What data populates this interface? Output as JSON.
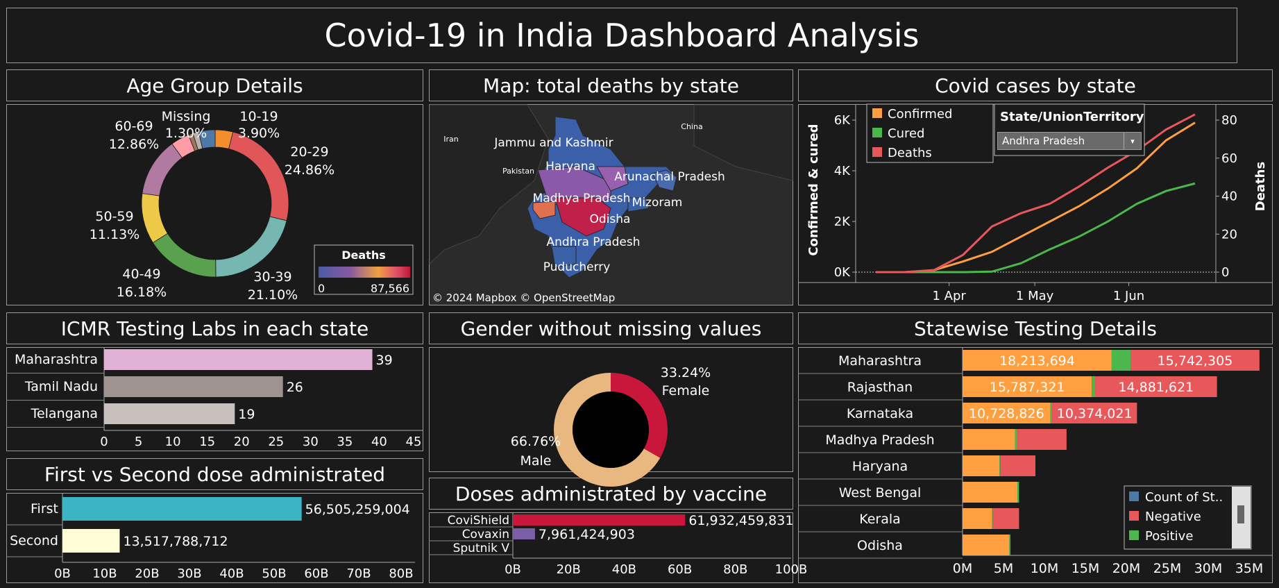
{
  "title": "Covid-19 in India Dashboard Analysis",
  "panels": {
    "age": "Age Group Details",
    "map": "Map: total deaths by state",
    "cases": "Covid cases by state",
    "labs": "ICMR Testing Labs in each state",
    "gender": "Gender without missing values",
    "testing": "Statewise Testing Details",
    "dose": "First vs Second dose administrated",
    "vaccine": "Doses administrated by vaccine"
  },
  "colors": {
    "bg": "#1a1a1a",
    "confirmed": "#ff9f40",
    "cured": "#4cb74c",
    "deaths": "#e8575a",
    "first": "#3cb4c4",
    "second": "#fffdd8",
    "covishield": "#c8173a",
    "covaxin": "#7a5fa8",
    "female": "#c8173a",
    "male": "#e8b880"
  },
  "age_chart": {
    "type": "pie",
    "slices": [
      {
        "label": "10-19",
        "pct": "3.90%",
        "value": 3.9,
        "color": "#f28e2b"
      },
      {
        "label": "20-29",
        "pct": "24.86%",
        "value": 24.86,
        "color": "#e15759"
      },
      {
        "label": "30-39",
        "pct": "21.10%",
        "value": 21.1,
        "color": "#76b7b2"
      },
      {
        "label": "40-49",
        "pct": "16.18%",
        "value": 16.18,
        "color": "#59a14f"
      },
      {
        "label": "50-59",
        "pct": "11.13%",
        "value": 11.13,
        "color": "#edc948"
      },
      {
        "label": "60-69",
        "pct": "12.86%",
        "value": 12.86,
        "color": "#b07aa1"
      },
      {
        "label": "",
        "pct": "",
        "value": 4.07,
        "color": "#ff9da7"
      },
      {
        "label": "",
        "pct": "",
        "value": 1.0,
        "color": "#9c755f"
      },
      {
        "label": "Missing",
        "pct": "1.30%",
        "value": 1.3,
        "color": "#bab0ac"
      },
      {
        "label": "",
        "pct": "",
        "value": 3.6,
        "color": "#4e79a7"
      }
    ]
  },
  "map_legend": {
    "title": "Deaths",
    "min": "0",
    "max": "87,566"
  },
  "map_labels": [
    "Jammu and Kashmir",
    "Haryana",
    "Arunachal Pradesh",
    "Madhya Pradesh",
    "Mizoram",
    "Odisha",
    "Andhra Pradesh",
    "Puducherry",
    "Iran",
    "Pakistan",
    "China"
  ],
  "map_credit": "© 2024 Mapbox © OpenStreetMap",
  "cases_legend": {
    "items": [
      "Confirmed",
      "Cured",
      "Deaths"
    ]
  },
  "state_filter": {
    "label": "State/UnionTerritory",
    "selected": "Andhra Pradesh"
  },
  "chart_data": [
    {
      "type": "line",
      "title": "Covid cases by state",
      "ylabel": "Confirmed & cured",
      "y2label": "Deaths",
      "x_ticks": [
        "1 Apr",
        "1 May",
        "1 Jun"
      ],
      "y_ticks": [
        "0K",
        "2K",
        "4K",
        "6K"
      ],
      "y2_ticks": [
        "0",
        "20",
        "40",
        "60",
        "80"
      ],
      "ylim": [
        0,
        6000
      ],
      "y2lim": [
        0,
        80
      ],
      "x": [
        "Mar 12",
        "Mar 22",
        "Apr 1",
        "Apr 11",
        "Apr 21",
        "May 1",
        "May 11",
        "May 21",
        "Jun 1",
        "Jun 11",
        "Jun 21",
        "Jun 25"
      ],
      "series": [
        {
          "name": "Confirmed",
          "axis": "left",
          "values": [
            0,
            0,
            80,
            420,
            800,
            1400,
            2000,
            2600,
            3300,
            4100,
            5200,
            5900
          ]
        },
        {
          "name": "Cured",
          "axis": "left",
          "values": [
            0,
            0,
            0,
            0,
            20,
            350,
            900,
            1400,
            2000,
            2700,
            3200,
            3500
          ]
        },
        {
          "name": "Deaths",
          "axis": "right",
          "values": [
            0,
            0,
            1,
            9,
            24,
            31,
            36,
            45,
            55,
            64,
            75,
            83
          ]
        }
      ]
    },
    {
      "type": "bar",
      "title": "ICMR Testing Labs in each state",
      "categories": [
        "Maharashtra",
        "Tamil Nadu",
        "Telangana"
      ],
      "values": [
        39,
        26,
        19
      ],
      "value_labels": [
        "39",
        "26",
        "19"
      ],
      "colors": [
        "#e0b3d6",
        "#9e9391",
        "#c8c0bd"
      ],
      "x_ticks": [
        "0",
        "5",
        "10",
        "15",
        "20",
        "25",
        "30",
        "35",
        "40",
        "45"
      ],
      "xlim": [
        0,
        45
      ]
    },
    {
      "type": "pie",
      "title": "Gender without missing values",
      "slices": [
        {
          "label": "Female",
          "pct": "33.24%",
          "value": 33.24
        },
        {
          "label": "Male",
          "pct": "66.76%",
          "value": 66.76
        }
      ]
    },
    {
      "type": "bar",
      "title": "Statewise Testing Details",
      "categories": [
        "Maharashtra",
        "Rajasthan",
        "Karnataka",
        "Madhya Pradesh",
        "Haryana",
        "West Bengal",
        "Kerala",
        "Odisha"
      ],
      "legend": [
        "Count of St..",
        "Negative",
        "Positive"
      ],
      "legend_colors": [
        "#4e79a7",
        "#e8575a",
        "#4cb74c"
      ],
      "x_ticks": [
        "0M",
        "5M",
        "10M",
        "15M",
        "20M",
        "25M",
        "30M",
        "35M"
      ],
      "xlim": [
        0,
        35000000
      ],
      "segments": [
        [
          {
            "v": 18213694,
            "c": "#ff9f40",
            "label": "18,213,694"
          },
          {
            "v": 2300000,
            "c": "#4cb74c",
            "label": ""
          },
          {
            "v": 15742305,
            "c": "#e8575a",
            "label": "15,742,305"
          }
        ],
        [
          {
            "v": 15787321,
            "c": "#ff9f40",
            "label": "15,787,321"
          },
          {
            "v": 400000,
            "c": "#4cb74c",
            "label": ""
          },
          {
            "v": 14881621,
            "c": "#e8575a",
            "label": "14,881,621"
          }
        ],
        [
          {
            "v": 10728826,
            "c": "#ff9f40",
            "label": "10,728,826"
          },
          {
            "v": 200000,
            "c": "#4cb74c",
            "label": ""
          },
          {
            "v": 10374021,
            "c": "#e8575a",
            "label": "10,374,021"
          }
        ],
        [
          {
            "v": 6400000,
            "c": "#ff9f40",
            "label": ""
          },
          {
            "v": 300000,
            "c": "#4cb74c",
            "label": ""
          },
          {
            "v": 6000000,
            "c": "#e8575a",
            "label": ""
          }
        ],
        [
          {
            "v": 4500000,
            "c": "#ff9f40",
            "label": ""
          },
          {
            "v": 100000,
            "c": "#4cb74c",
            "label": ""
          },
          {
            "v": 4300000,
            "c": "#e8575a",
            "label": ""
          }
        ],
        [
          {
            "v": 6700000,
            "c": "#ff9f40",
            "label": ""
          },
          {
            "v": 200000,
            "c": "#4cb74c",
            "label": ""
          }
        ],
        [
          {
            "v": 3600000,
            "c": "#ff9f40",
            "label": ""
          },
          {
            "v": 100000,
            "c": "#4cb74c",
            "label": ""
          },
          {
            "v": 3200000,
            "c": "#e8575a",
            "label": ""
          }
        ],
        [
          {
            "v": 5700000,
            "c": "#ff9f40",
            "label": ""
          },
          {
            "v": 150000,
            "c": "#4cb74c",
            "label": ""
          }
        ]
      ]
    },
    {
      "type": "bar",
      "title": "First vs Second dose administrated",
      "categories": [
        "First",
        "Second"
      ],
      "values": [
        56505259004,
        13517788712
      ],
      "value_labels": [
        "56,505,259,004",
        "13,517,788,712"
      ],
      "x_ticks": [
        "0B",
        "10B",
        "20B",
        "30B",
        "40B",
        "50B",
        "60B",
        "70B",
        "80B"
      ],
      "xlim": [
        0,
        80000000000
      ]
    },
    {
      "type": "bar",
      "title": "Doses administrated by vaccine",
      "categories": [
        "CoviShield",
        "Covaxin",
        "Sputnik V"
      ],
      "values": [
        61932459831,
        7961424903,
        0
      ],
      "value_labels": [
        "61,932,459,831",
        "7,961,424,903",
        ""
      ],
      "x_ticks": [
        "0B",
        "20B",
        "40B",
        "60B",
        "80B",
        "100B"
      ],
      "xlim": [
        0,
        100000000000
      ]
    }
  ]
}
